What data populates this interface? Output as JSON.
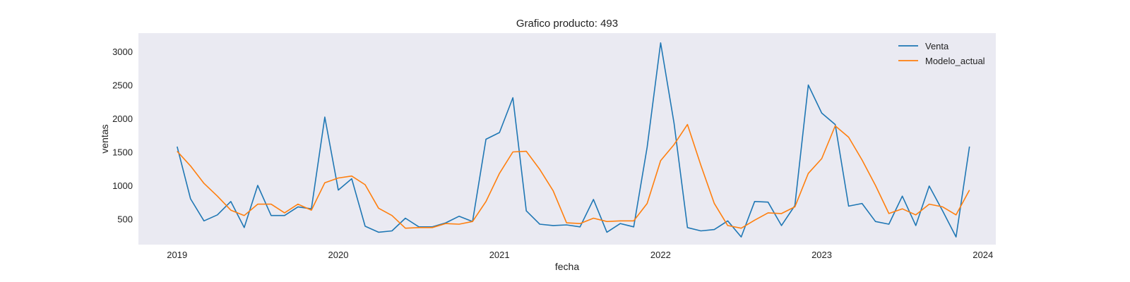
{
  "chart_data": {
    "type": "line",
    "title": "Grafico producto: 493",
    "xlabel": "fecha",
    "ylabel": "ventas",
    "xlim": [
      2018.76,
      2024.08
    ],
    "ylim": [
      115,
      3275
    ],
    "x_ticks": [
      2019,
      2020,
      2021,
      2022,
      2023,
      2024
    ],
    "x_tick_labels": [
      "2019",
      "2020",
      "2021",
      "2022",
      "2023",
      "2024"
    ],
    "y_ticks": [
      500,
      1000,
      1500,
      2000,
      2500,
      3000
    ],
    "y_tick_labels": [
      "500",
      "1000",
      "1500",
      "2000",
      "2500",
      "3000"
    ],
    "grid": false,
    "legend_position": "top-right",
    "background": "#eaeaf2",
    "x": [
      "2019-01",
      "2019-02",
      "2019-03",
      "2019-04",
      "2019-05",
      "2019-06",
      "2019-07",
      "2019-08",
      "2019-09",
      "2019-10",
      "2019-11",
      "2019-12",
      "2020-01",
      "2020-02",
      "2020-03",
      "2020-04",
      "2020-05",
      "2020-06",
      "2020-07",
      "2020-08",
      "2020-09",
      "2020-10",
      "2020-11",
      "2020-12",
      "2021-01",
      "2021-02",
      "2021-03",
      "2021-04",
      "2021-05",
      "2021-06",
      "2021-07",
      "2021-08",
      "2021-09",
      "2021-10",
      "2021-11",
      "2021-12",
      "2022-01",
      "2022-02",
      "2022-03",
      "2022-04",
      "2022-05",
      "2022-06",
      "2022-07",
      "2022-08",
      "2022-09",
      "2022-10",
      "2022-11",
      "2022-12",
      "2023-01",
      "2023-02",
      "2023-03",
      "2023-04",
      "2023-05",
      "2023-06",
      "2023-07",
      "2023-08",
      "2023-09",
      "2023-10",
      "2023-11",
      "2023-12"
    ],
    "series": [
      {
        "name": "Venta",
        "color": "#1f77b4",
        "values": [
          1580,
          800,
          470,
          560,
          760,
          370,
          1000,
          550,
          550,
          680,
          650,
          2020,
          930,
          1100,
          390,
          300,
          320,
          510,
          380,
          380,
          440,
          540,
          460,
          1690,
          1790,
          2310,
          620,
          420,
          400,
          410,
          380,
          790,
          300,
          430,
          380,
          1570,
          3130,
          1930,
          370,
          320,
          340,
          470,
          230,
          760,
          750,
          400,
          700,
          2500,
          2080,
          1910,
          690,
          730,
          460,
          420,
          840,
          400,
          990,
          620,
          230,
          1580
        ]
      },
      {
        "name": "Modelo_actual",
        "color": "#ff7f0e",
        "values": [
          1510,
          1290,
          1030,
          840,
          630,
          550,
          720,
          720,
          590,
          720,
          630,
          1040,
          1110,
          1140,
          1010,
          660,
          550,
          360,
          370,
          370,
          430,
          420,
          460,
          760,
          1180,
          1500,
          1510,
          1240,
          920,
          440,
          430,
          510,
          460,
          470,
          470,
          730,
          1370,
          1610,
          1910,
          1300,
          730,
          400,
          360,
          480,
          590,
          580,
          680,
          1180,
          1400,
          1890,
          1720,
          1380,
          1000,
          580,
          650,
          560,
          720,
          680,
          560,
          930
        ]
      }
    ]
  }
}
